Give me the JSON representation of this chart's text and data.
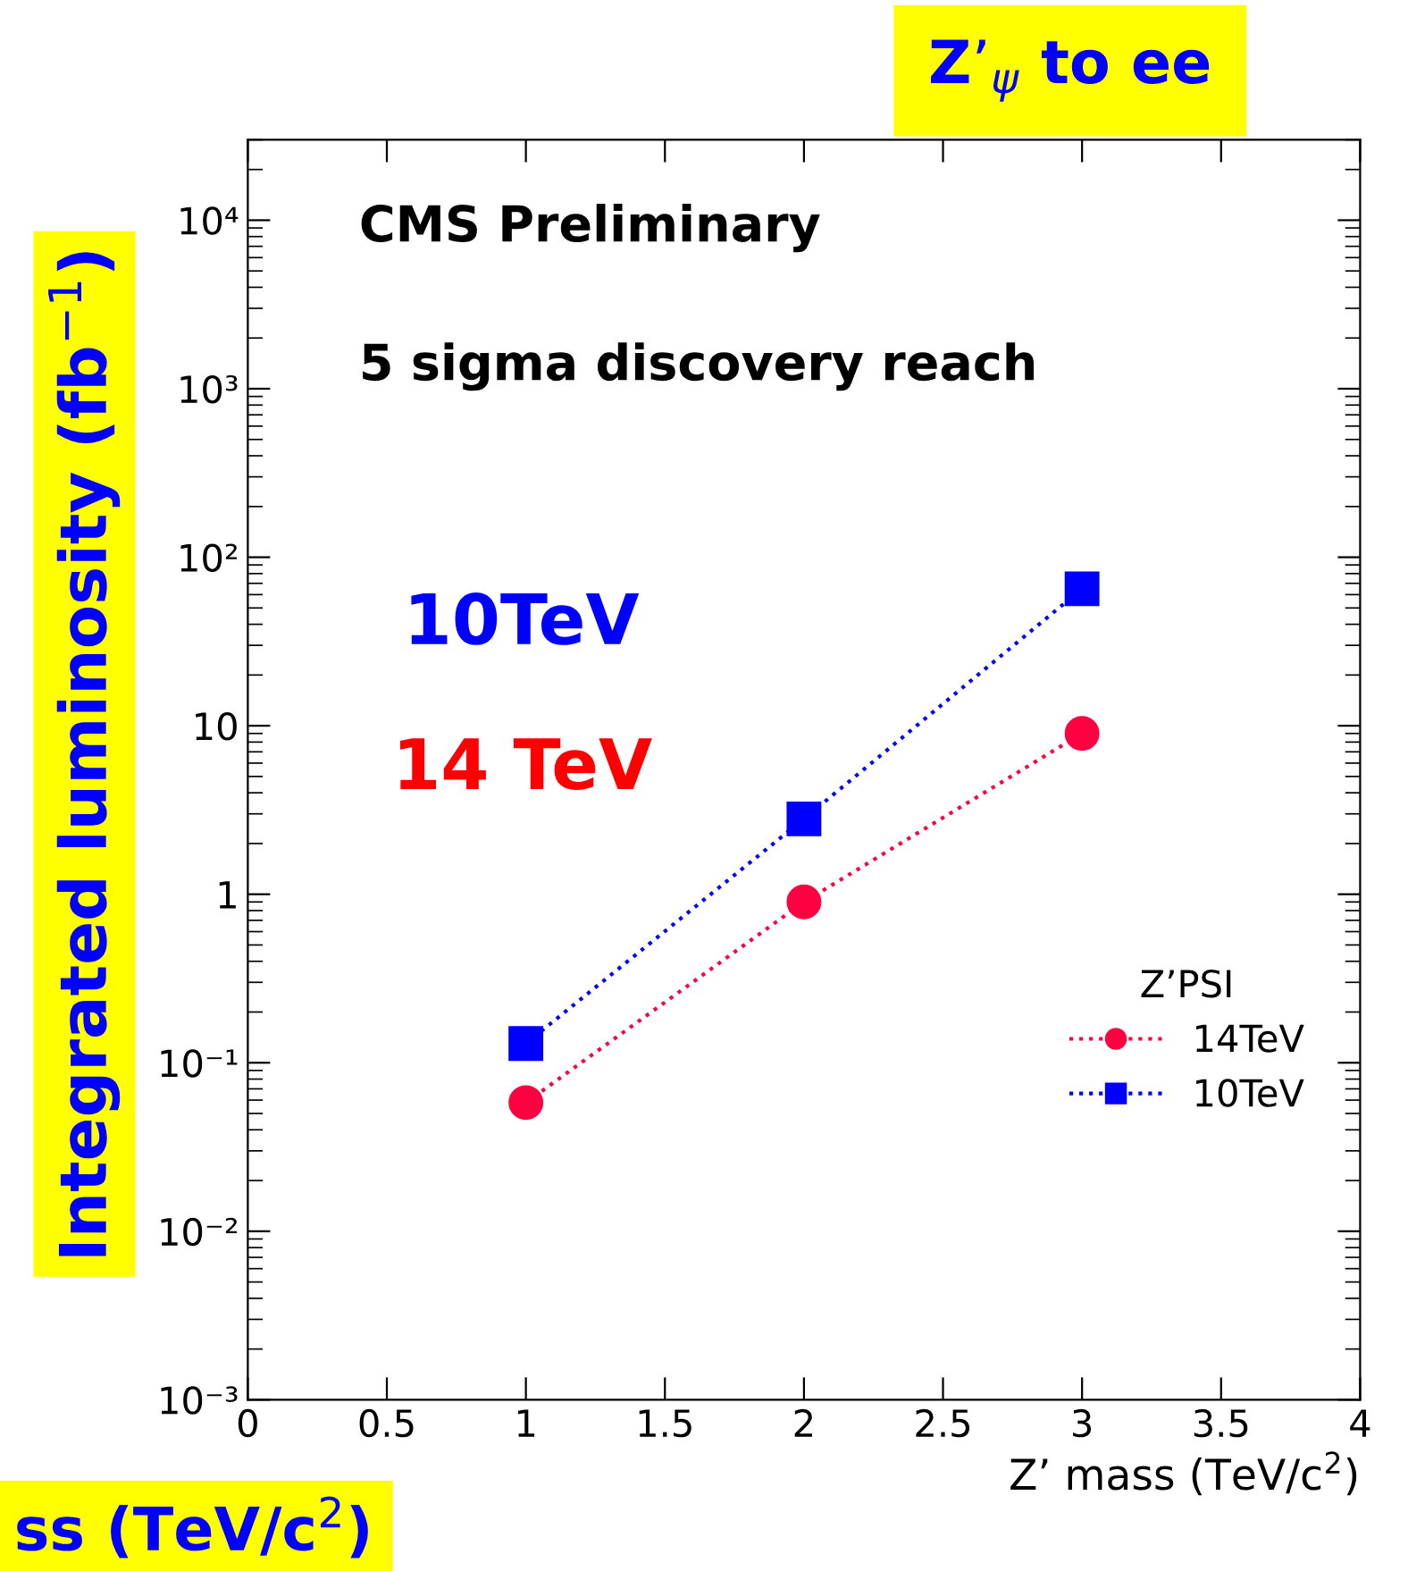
{
  "chart_data": {
    "type": "line",
    "title": "Z’$_{ψ}$ to ee",
    "xlabel": "Z’ mass (TeV/c$^{2}$)",
    "ylabel": "Integrated luminosity (fb$^{−1}$)",
    "legend_title": "Z’PSI",
    "annotations": [
      "CMS Preliminary",
      "5 sigma discovery reach",
      "10TeV",
      "14 TeV",
      "ss (TeV/c$^{2}$)"
    ],
    "x": [
      1,
      2,
      3
    ],
    "series": [
      {
        "name": "14TeV",
        "color": "#ff0040",
        "values": [
          0.058,
          0.9,
          9
        ],
        "marker": "circle"
      },
      {
        "name": "10TeV",
        "color": "#0000ff",
        "values": [
          0.13,
          2.8,
          65
        ],
        "marker": "square"
      }
    ],
    "log": "y",
    "line_style": "dotted",
    "xlim": [
      0,
      4
    ],
    "xticks": [
      0,
      0.5,
      1,
      1.5,
      2,
      2.5,
      3,
      3.5,
      4
    ],
    "ylim": [
      0.001,
      30000
    ],
    "yticks": [
      {
        "value": 0.001,
        "label": "10⁻³"
      },
      {
        "value": 0.01,
        "label": "10⁻²"
      },
      {
        "value": 0.1,
        "label": "10⁻¹"
      },
      1,
      10,
      {
        "value": 100,
        "label": "10²"
      },
      {
        "value": 1000,
        "label": "10³"
      },
      {
        "value": 10000,
        "label": "10⁴"
      }
    ],
    "grid": false,
    "legend": "lower right"
  }
}
